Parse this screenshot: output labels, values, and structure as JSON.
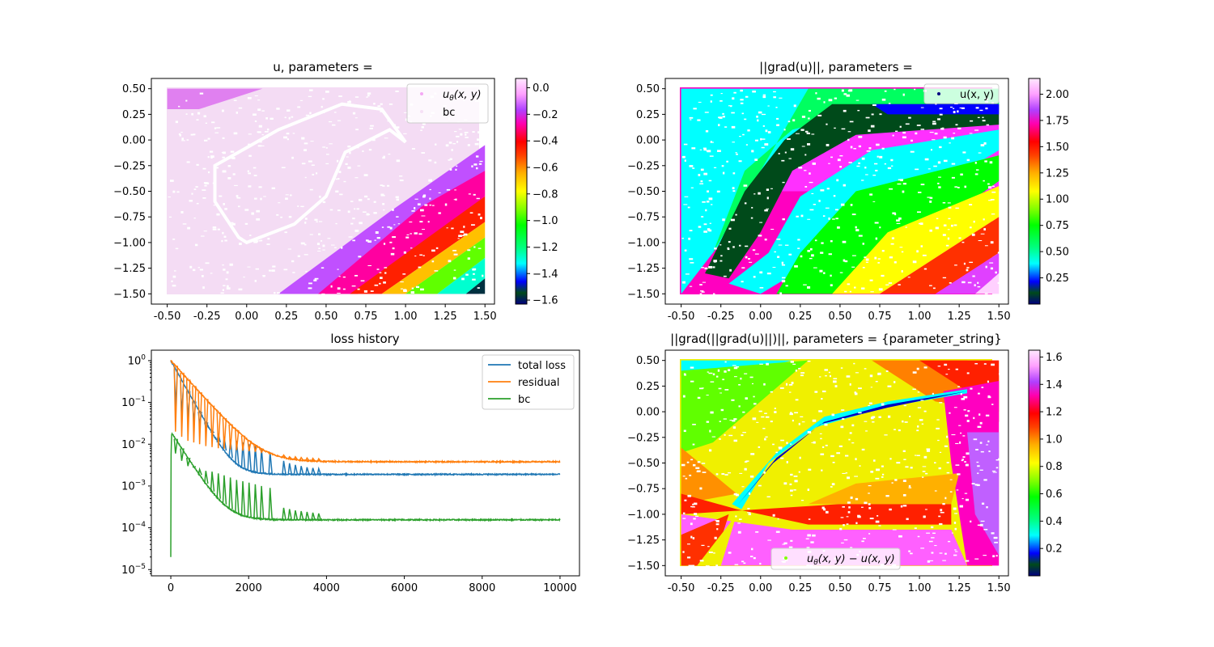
{
  "figure": {
    "titles": {
      "u": "u, parameters =",
      "grad": "||grad(u)||, parameters =",
      "loss": "loss history",
      "grad2": "||grad(||grad(u)||)||, parameters = {parameter_string}"
    },
    "legends": {
      "u_theta": "u",
      "u_theta_sub": "θ",
      "u_theta_args": "(x, y)",
      "bc": "bc",
      "u_xy": "u(x, y)",
      "diff_main": "u",
      "diff_sub": "θ",
      "diff_rest": "(x, y) − u(x, y)"
    }
  },
  "chart_data": [
    {
      "type": "scatter",
      "id": "u",
      "title": "u, parameters =",
      "xlim": [
        -0.6,
        1.56
      ],
      "ylim": [
        -1.6,
        0.6
      ],
      "xticks": [
        "-0.50",
        "-0.25",
        "0.00",
        "0.25",
        "0.50",
        "0.75",
        "1.00",
        "1.25",
        "1.50"
      ],
      "xtick_values": [
        -0.5,
        -0.25,
        0,
        0.25,
        0.5,
        0.75,
        1.0,
        1.25,
        1.5
      ],
      "yticks": [
        "0.50",
        "0.25",
        "0.00",
        "−0.25",
        "−0.50",
        "−0.75",
        "−1.00",
        "−1.25",
        "−1.50"
      ],
      "ytick_values": [
        0.5,
        0.25,
        0,
        -0.25,
        -0.5,
        -0.75,
        -1.0,
        -1.25,
        -1.5
      ],
      "domain": {
        "x": [
          -0.5,
          1.5
        ],
        "y": [
          -1.5,
          0.5
        ]
      },
      "colorbar": {
        "colormap": "gist_ncar_r",
        "range": [
          -1.63,
          0.07
        ],
        "ticks": [
          "0.0",
          "−0.2",
          "−0.4",
          "−0.6",
          "−0.8",
          "−1.0",
          "−1.2",
          "−1.4",
          "−1.6"
        ],
        "tick_values": [
          0.0,
          -0.2,
          -0.4,
          -0.6,
          -0.8,
          -1.0,
          -1.2,
          -1.4,
          -1.6
        ]
      },
      "legend": [
        "uθ(x, y)",
        "bc"
      ],
      "legend_position": "upper right",
      "boundary_curve": [
        [
          0.0,
          -1.0
        ],
        [
          0.3,
          -0.82
        ],
        [
          0.5,
          -0.55
        ],
        [
          0.62,
          -0.12
        ],
        [
          0.9,
          0.1
        ],
        [
          1.0,
          -0.02
        ],
        [
          0.85,
          0.3
        ],
        [
          0.6,
          0.35
        ],
        [
          0.2,
          0.1
        ],
        [
          -0.2,
          -0.25
        ],
        [
          -0.2,
          -0.6
        ],
        [
          -0.05,
          -0.95
        ]
      ]
    },
    {
      "type": "scatter",
      "id": "grad",
      "title": "||grad(u)||, parameters =",
      "xlim": [
        -0.6,
        1.56
      ],
      "ylim": [
        -1.6,
        0.6
      ],
      "xticks": [
        "-0.50",
        "-0.25",
        "0.00",
        "0.25",
        "0.50",
        "0.75",
        "1.00",
        "1.25",
        "1.50"
      ],
      "xtick_values": [
        -0.5,
        -0.25,
        0,
        0.25,
        0.5,
        0.75,
        1.0,
        1.25,
        1.5
      ],
      "yticks": [
        "0.50",
        "0.25",
        "0.00",
        "−0.25",
        "−0.50",
        "−0.75",
        "−1.00",
        "−1.25",
        "−1.50"
      ],
      "ytick_values": [
        0.5,
        0.25,
        0,
        -0.25,
        -0.5,
        -0.75,
        -1.0,
        -1.25,
        -1.5
      ],
      "domain": {
        "x": [
          -0.5,
          1.5
        ],
        "y": [
          -1.5,
          0.5
        ]
      },
      "colorbar": {
        "colormap": "gist_ncar_r",
        "range": [
          0.0,
          2.15
        ],
        "ticks": [
          "2.00",
          "1.75",
          "1.50",
          "1.25",
          "1.00",
          "0.75",
          "0.50",
          "0.25"
        ],
        "tick_values": [
          2.0,
          1.75,
          1.5,
          1.25,
          1.0,
          0.75,
          0.5,
          0.25
        ]
      },
      "legend": [
        "u(x, y)"
      ],
      "legend_position": "upper right"
    },
    {
      "type": "line",
      "id": "loss",
      "title": "loss history",
      "yscale": "log",
      "xlim": [
        -500,
        10500
      ],
      "ylim_exp": [
        -5.15,
        0.25
      ],
      "xticks": [
        "0",
        "2000",
        "4000",
        "6000",
        "8000",
        "10000"
      ],
      "xtick_values": [
        0,
        2000,
        4000,
        6000,
        8000,
        10000
      ],
      "yticks_exp": [
        0,
        -1,
        -2,
        -3,
        -4,
        -5
      ],
      "legend_position": "upper right",
      "spikes_x": [
        120,
        280,
        440,
        590,
        740,
        900,
        1060,
        1220,
        1370,
        1530,
        1690,
        1850,
        2010,
        2170,
        2330,
        2550,
        2900,
        3050,
        3200,
        3350,
        3500,
        3650,
        3800
      ],
      "series": [
        {
          "name": "total loss",
          "color": "#1f77b4",
          "start": 1.0,
          "plateau": 0.0019,
          "decay": 260,
          "spike_height": [
            0.075,
            0.05,
            0.04,
            0.035,
            0.03,
            0.025,
            0.021,
            0.018,
            0.015,
            0.013,
            0.012,
            0.011,
            0.01,
            0.009,
            0.008,
            0.0065,
            0.004,
            0.0035,
            0.0032,
            0.003,
            0.0028,
            0.0027,
            0.0026
          ]
        },
        {
          "name": "residual",
          "color": "#ff7f0e",
          "start": 1.0,
          "plateau": 0.0038,
          "decay": 420,
          "spike_height": [
            0.02,
            0.015,
            0.012,
            0.011,
            0.01,
            0.009,
            0.0085,
            0.008,
            0.0078,
            0.0075,
            0.0072,
            0.007,
            0.0068,
            0.0066,
            0.0064,
            0.006,
            0.0055,
            0.005,
            0.005,
            0.0048,
            0.0047,
            0.0046,
            0.0045
          ]
        },
        {
          "name": "bc",
          "color": "#2ca02c",
          "start": 0.02,
          "plateau": 0.000155,
          "decay": 300,
          "spike_height": [
            0.006,
            0.004,
            0.003,
            0.0028,
            0.0025,
            0.0023,
            0.0022,
            0.002,
            0.0018,
            0.0016,
            0.0014,
            0.0013,
            0.0012,
            0.0011,
            0.001,
            0.0009,
            0.0003,
            0.00028,
            0.00026,
            0.00025,
            0.00024,
            0.00023,
            0.00022
          ]
        }
      ]
    },
    {
      "type": "scatter",
      "id": "grad2",
      "title": "||grad(||grad(u)||)||, parameters = {parameter_string}",
      "xlim": [
        -0.6,
        1.56
      ],
      "ylim": [
        -1.6,
        0.6
      ],
      "xticks": [
        "-0.50",
        "-0.25",
        "0.00",
        "0.25",
        "0.50",
        "0.75",
        "1.00",
        "1.25",
        "1.50"
      ],
      "xtick_values": [
        -0.5,
        -0.25,
        0,
        0.25,
        0.5,
        0.75,
        1.0,
        1.25,
        1.5
      ],
      "yticks": [
        "0.50",
        "0.25",
        "0.00",
        "−0.25",
        "−0.50",
        "−0.75",
        "−1.00",
        "−1.25",
        "−1.50"
      ],
      "ytick_values": [
        0.5,
        0.25,
        0,
        -0.25,
        -0.5,
        -0.75,
        -1.0,
        -1.25,
        -1.5
      ],
      "domain": {
        "x": [
          -0.5,
          1.5
        ],
        "y": [
          -1.5,
          0.5
        ]
      },
      "colorbar": {
        "colormap": "gist_ncar_r",
        "range": [
          0.0,
          1.65
        ],
        "ticks": [
          "1.6",
          "1.4",
          "1.2",
          "1.0",
          "0.8",
          "0.6",
          "0.4",
          "0.2"
        ],
        "tick_values": [
          1.6,
          1.4,
          1.2,
          1.0,
          0.8,
          0.6,
          0.4,
          0.2
        ]
      },
      "legend": [
        "uθ(x, y) − u(x, y)"
      ],
      "legend_position": "lower center"
    }
  ]
}
